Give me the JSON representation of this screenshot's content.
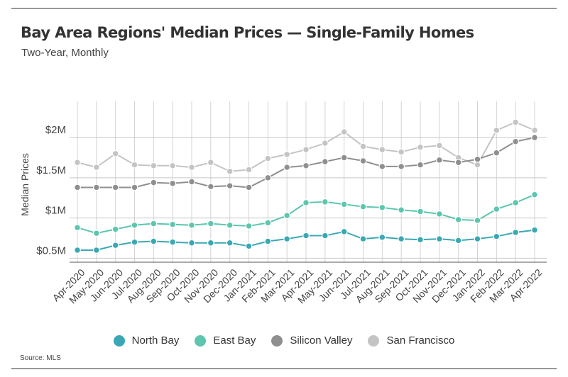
{
  "header": {
    "title": "Bay Area Regions' Median Prices — Single-Family Homes",
    "subtitle": "Two-Year, Monthly"
  },
  "footer": {
    "source": "Source:  MLS"
  },
  "chart_data": {
    "type": "line",
    "title": "Bay Area Regions' Median Prices — Single-Family Homes",
    "subtitle": "Two-Year, Monthly",
    "xlabel": "",
    "ylabel": "Median Prices",
    "ylim": [
      0.45,
      2.45
    ],
    "yticks": [
      0.5,
      1.0,
      1.5,
      2.0
    ],
    "ytick_labels": [
      "$0.5M",
      "$1M",
      "$1.5M",
      "$2M"
    ],
    "grid": true,
    "legend_position": "bottom",
    "categories": [
      "Apr-2020",
      "May-2020",
      "Jun-2020",
      "Jul-2020",
      "Aug-2020",
      "Sep-2020",
      "Oct-2020",
      "Nov-2020",
      "Dec-2020",
      "Jan-2021",
      "Feb-2021",
      "Mar-2021",
      "Apr-2021",
      "May-2021",
      "Jun-2021",
      "Jul-2021",
      "Aug-2021",
      "Sep-2021",
      "Oct-2021",
      "Nov-2021",
      "Dec-2021",
      "Jan-2022",
      "Feb-2022",
      "Mar-2022",
      "Apr-2022"
    ],
    "series": [
      {
        "name": "North Bay",
        "color": "#3aa8b4",
        "values": [
          0.6,
          0.6,
          0.66,
          0.7,
          0.71,
          0.7,
          0.69,
          0.69,
          0.69,
          0.65,
          0.71,
          0.74,
          0.78,
          0.78,
          0.83,
          0.74,
          0.76,
          0.74,
          0.73,
          0.74,
          0.72,
          0.74,
          0.77,
          0.82,
          0.85
        ]
      },
      {
        "name": "East Bay",
        "color": "#5cc6ae",
        "values": [
          0.88,
          0.81,
          0.86,
          0.91,
          0.93,
          0.92,
          0.91,
          0.93,
          0.91,
          0.9,
          0.94,
          1.03,
          1.19,
          1.2,
          1.17,
          1.14,
          1.13,
          1.1,
          1.08,
          1.05,
          0.98,
          0.97,
          1.11,
          1.19,
          1.29
        ]
      },
      {
        "name": "Silicon Valley",
        "color": "#8f8f8f",
        "values": [
          1.38,
          1.38,
          1.38,
          1.38,
          1.44,
          1.43,
          1.45,
          1.39,
          1.4,
          1.38,
          1.5,
          1.63,
          1.65,
          1.7,
          1.75,
          1.71,
          1.64,
          1.64,
          1.66,
          1.72,
          1.69,
          1.73,
          1.81,
          1.95,
          2.0
        ]
      },
      {
        "name": "San Francisco",
        "color": "#c4c4c4",
        "values": [
          1.69,
          1.63,
          1.8,
          1.66,
          1.65,
          1.65,
          1.63,
          1.69,
          1.58,
          1.6,
          1.74,
          1.79,
          1.85,
          1.93,
          2.07,
          1.89,
          1.85,
          1.82,
          1.88,
          1.9,
          1.75,
          1.66,
          2.09,
          2.19,
          2.09
        ]
      }
    ]
  }
}
